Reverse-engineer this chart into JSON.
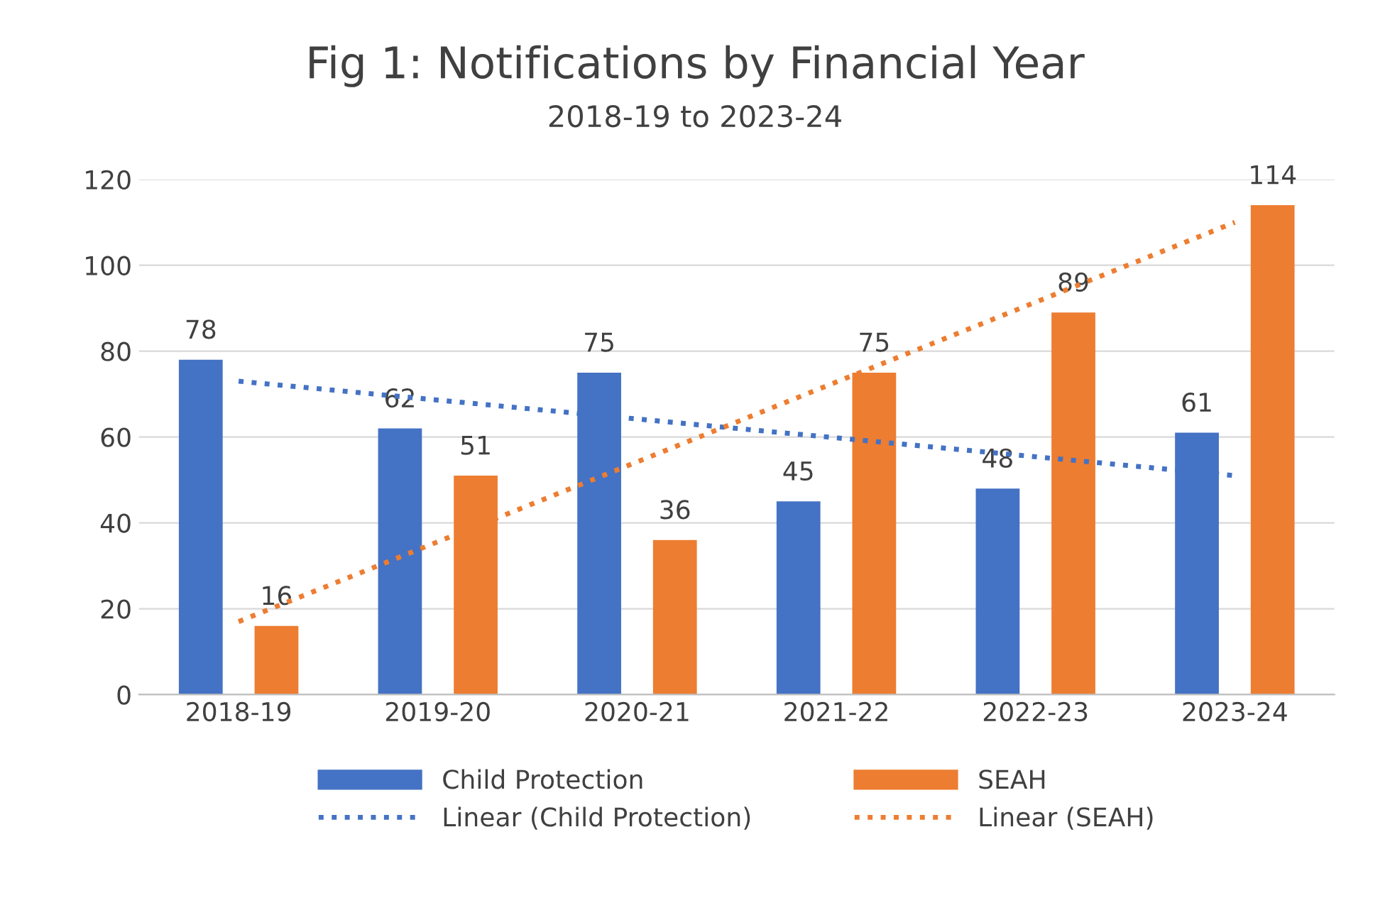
{
  "chart_data": {
    "type": "bar",
    "title": "Fig 1: Notifications by Financial Year",
    "subtitle": "2018-19 to 2023-24",
    "categories": [
      "2018-19",
      "2019-20",
      "2020-21",
      "2021-22",
      "2022-23",
      "2023-24"
    ],
    "series": [
      {
        "name": "Child Protection",
        "color": "#4472c4",
        "values": [
          78,
          62,
          75,
          45,
          48,
          61
        ],
        "value_labels": [
          "78",
          "62",
          "75",
          "45",
          "48",
          "61"
        ]
      },
      {
        "name": "SEAH",
        "color": "#ed7d31",
        "values": [
          16,
          51,
          36,
          75,
          89,
          114
        ],
        "value_labels": [
          "16",
          "51",
          "36",
          "75",
          "89",
          "114"
        ]
      },
      {
        "name": "Linear (Child Protection)",
        "type": "line",
        "line_style": "dotted",
        "color": "#4472c4",
        "x": [
          "2018-19",
          "2023-24"
        ],
        "values": [
          73,
          51
        ]
      },
      {
        "name": "Linear (SEAH)",
        "type": "line",
        "line_style": "dotted",
        "color": "#ed7d31",
        "x": [
          "2018-19",
          "2023-24"
        ],
        "values": [
          17,
          110
        ]
      }
    ],
    "ylim": [
      0,
      120
    ],
    "yticks": [
      0,
      20,
      40,
      60,
      80,
      100,
      120
    ],
    "grid": "y",
    "legend": "bottom"
  }
}
